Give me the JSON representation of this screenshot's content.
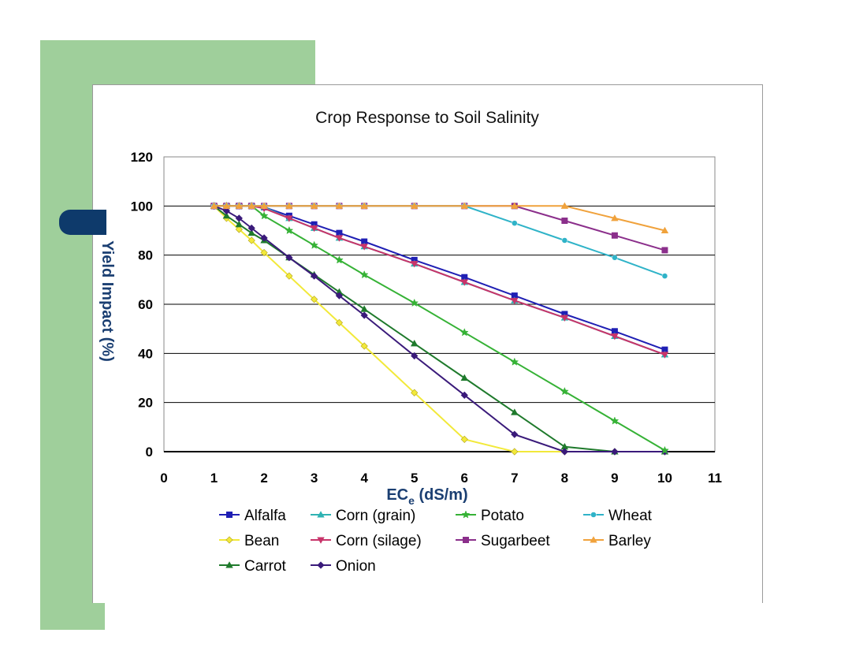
{
  "chart_data": {
    "type": "line",
    "title": "Crop Response to Soil Salinity",
    "xlabel": "EC",
    "xlabel_subscript": "e",
    "xlabel_unit": " (dS/m)",
    "ylabel": "Yield Impact (%)",
    "xlim": [
      0,
      11
    ],
    "ylim": [
      0,
      120
    ],
    "x_ticks": [
      "0",
      "1",
      "2",
      "3",
      "4",
      "5",
      "6",
      "7",
      "8",
      "9",
      "10",
      "11"
    ],
    "y_ticks": [
      "0",
      "20",
      "40",
      "60",
      "80",
      "100",
      "120"
    ],
    "grid": "horizontal",
    "legend_position": "bottom",
    "series": [
      {
        "name": "Alfalfa",
        "color": "#1f1fb4",
        "marker": "square",
        "points": [
          [
            1,
            100
          ],
          [
            1.25,
            100
          ],
          [
            1.5,
            100
          ],
          [
            1.75,
            100
          ],
          [
            2,
            99.5
          ],
          [
            2.5,
            96
          ],
          [
            3,
            92.5
          ],
          [
            3.5,
            89
          ],
          [
            4,
            85.5
          ],
          [
            5,
            78
          ],
          [
            6,
            71
          ],
          [
            7,
            63.5
          ],
          [
            8,
            56
          ],
          [
            9,
            49
          ],
          [
            10,
            41.5
          ]
        ]
      },
      {
        "name": "Bean",
        "color": "#f2e93a",
        "marker": "diamond",
        "points": [
          [
            1,
            100
          ],
          [
            1.25,
            95
          ],
          [
            1.5,
            90.5
          ],
          [
            1.75,
            86
          ],
          [
            2,
            81
          ],
          [
            2.5,
            71.5
          ],
          [
            3,
            62
          ],
          [
            3.5,
            52.5
          ],
          [
            4,
            43
          ],
          [
            5,
            24
          ],
          [
            6,
            5
          ],
          [
            7,
            0
          ],
          [
            8,
            0
          ],
          [
            9,
            0
          ],
          [
            10,
            0
          ]
        ]
      },
      {
        "name": "Carrot",
        "color": "#1f7a2c",
        "marker": "triangle",
        "points": [
          [
            1,
            100
          ],
          [
            1.25,
            96
          ],
          [
            1.5,
            92.5
          ],
          [
            1.75,
            89
          ],
          [
            2,
            86
          ],
          [
            2.5,
            79
          ],
          [
            3,
            72
          ],
          [
            3.5,
            65
          ],
          [
            4,
            58
          ],
          [
            5,
            44
          ],
          [
            6,
            30
          ],
          [
            7,
            16
          ],
          [
            8,
            2
          ],
          [
            9,
            0
          ],
          [
            10,
            0
          ]
        ]
      },
      {
        "name": "Corn (grain)",
        "color": "#2fb3b3",
        "marker": "triangle",
        "points": [
          [
            1,
            100
          ],
          [
            1.25,
            100
          ],
          [
            1.5,
            100
          ],
          [
            1.75,
            100
          ],
          [
            2,
            99.5
          ],
          [
            2.5,
            95
          ],
          [
            3,
            91
          ],
          [
            3.5,
            87
          ],
          [
            4,
            83.5
          ],
          [
            5,
            76.5
          ],
          [
            6,
            69
          ],
          [
            7,
            61.5
          ],
          [
            8,
            54.5
          ],
          [
            9,
            47
          ],
          [
            10,
            39.5
          ]
        ]
      },
      {
        "name": "Corn (silage)",
        "color": "#c8346a",
        "marker": "triangle-down",
        "points": [
          [
            1,
            100
          ],
          [
            1.25,
            100
          ],
          [
            1.5,
            100
          ],
          [
            1.75,
            100
          ],
          [
            2,
            99
          ],
          [
            2.5,
            95
          ],
          [
            3,
            91
          ],
          [
            3.5,
            87
          ],
          [
            4,
            83.5
          ],
          [
            5,
            76.5
          ],
          [
            6,
            69
          ],
          [
            7,
            61.5
          ],
          [
            8,
            54.5
          ],
          [
            9,
            47
          ],
          [
            10,
            39.5
          ]
        ]
      },
      {
        "name": "Onion",
        "color": "#3a1a7a",
        "marker": "diamond",
        "points": [
          [
            1,
            100
          ],
          [
            1.25,
            98
          ],
          [
            1.5,
            95
          ],
          [
            1.75,
            91
          ],
          [
            2,
            87
          ],
          [
            2.5,
            79
          ],
          [
            3,
            71.5
          ],
          [
            3.5,
            63.5
          ],
          [
            4,
            55.5
          ],
          [
            5,
            39
          ],
          [
            6,
            23
          ],
          [
            7,
            7
          ],
          [
            8,
            0
          ],
          [
            9,
            0
          ],
          [
            10,
            0
          ]
        ]
      },
      {
        "name": "Potato",
        "color": "#36b236",
        "marker": "star",
        "points": [
          [
            1,
            100
          ],
          [
            1.25,
            100
          ],
          [
            1.5,
            100
          ],
          [
            1.75,
            100
          ],
          [
            2,
            96
          ],
          [
            2.5,
            90
          ],
          [
            3,
            84
          ],
          [
            3.5,
            78
          ],
          [
            4,
            72
          ],
          [
            5,
            60.5
          ],
          [
            6,
            48.5
          ],
          [
            7,
            36.5
          ],
          [
            8,
            24.5
          ],
          [
            9,
            12.5
          ],
          [
            10,
            0.5
          ]
        ]
      },
      {
        "name": "Sugarbeet",
        "color": "#8b2f8b",
        "marker": "square",
        "points": [
          [
            1,
            100
          ],
          [
            1.25,
            100
          ],
          [
            1.5,
            100
          ],
          [
            1.75,
            100
          ],
          [
            2,
            100
          ],
          [
            2.5,
            100
          ],
          [
            3,
            100
          ],
          [
            3.5,
            100
          ],
          [
            4,
            100
          ],
          [
            5,
            100
          ],
          [
            6,
            100
          ],
          [
            7,
            100
          ],
          [
            8,
            94
          ],
          [
            9,
            88
          ],
          [
            10,
            82
          ]
        ]
      },
      {
        "name": "Wheat",
        "color": "#2fb3c8",
        "marker": "circle",
        "points": [
          [
            1,
            100
          ],
          [
            1.25,
            100
          ],
          [
            1.5,
            100
          ],
          [
            1.75,
            100
          ],
          [
            2,
            100
          ],
          [
            2.5,
            100
          ],
          [
            3,
            100
          ],
          [
            3.5,
            100
          ],
          [
            4,
            100
          ],
          [
            5,
            100
          ],
          [
            6,
            100
          ],
          [
            7,
            93
          ],
          [
            8,
            86
          ],
          [
            9,
            79
          ],
          [
            10,
            71.5
          ]
        ]
      },
      {
        "name": "Barley",
        "color": "#f0a23c",
        "marker": "triangle",
        "points": [
          [
            1,
            100
          ],
          [
            1.25,
            100
          ],
          [
            1.5,
            100
          ],
          [
            1.75,
            100
          ],
          [
            2,
            100
          ],
          [
            2.5,
            100
          ],
          [
            3,
            100
          ],
          [
            3.5,
            100
          ],
          [
            4,
            100
          ],
          [
            5,
            100
          ],
          [
            6,
            100
          ],
          [
            7,
            100
          ],
          [
            8,
            100
          ],
          [
            9,
            95
          ],
          [
            10,
            90
          ]
        ]
      }
    ],
    "legend_layout": [
      [
        "Alfalfa",
        "Corn (grain)",
        "Potato",
        "Wheat"
      ],
      [
        "Bean",
        "Corn (silage)",
        "Sugarbeet",
        "Barley"
      ],
      [
        "Carrot",
        "Onion"
      ]
    ]
  }
}
